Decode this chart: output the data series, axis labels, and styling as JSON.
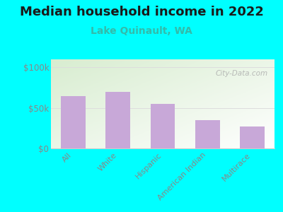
{
  "title": "Median household income in 2022",
  "subtitle": "Lake Quinault, WA",
  "categories": [
    "All",
    "White",
    "Hispanic",
    "American Indian",
    "Multirace"
  ],
  "values": [
    65000,
    70000,
    55000,
    35000,
    27000
  ],
  "bar_color": "#c8a8d8",
  "background_outer": "#00FFFF",
  "background_plot_tl": "#d8edd0",
  "background_plot_br": "#ffffff",
  "title_fontsize": 13,
  "subtitle_fontsize": 10,
  "subtitle_color": "#33BBAA",
  "ylabel_ticks": [
    "$0",
    "$50k",
    "$100k"
  ],
  "ytick_values": [
    0,
    50000,
    100000
  ],
  "ylim": [
    0,
    110000
  ],
  "watermark": "City-Data.com",
  "tick_color": "#888888",
  "axis_color": "#cccccc",
  "grid_color": "#dddddd"
}
